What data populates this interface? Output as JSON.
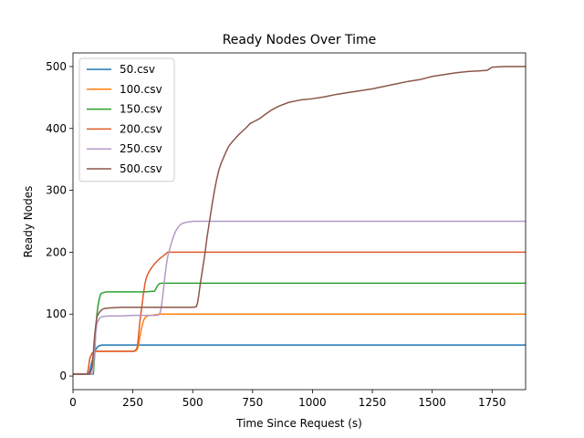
{
  "chart_data": {
    "type": "line",
    "title": "Ready Nodes Over Time",
    "xlabel": "Time Since Request (s)",
    "ylabel": "Ready Nodes",
    "xlim": [
      0,
      1890
    ],
    "ylim": [
      -22,
      522
    ],
    "xticks": [
      0,
      250,
      500,
      750,
      1000,
      1250,
      1500,
      1750
    ],
    "yticks": [
      0,
      100,
      200,
      300,
      400,
      500
    ],
    "grid": false,
    "legend_position": "top-left",
    "series": [
      {
        "name": "50.csv",
        "color": "#1f77b4",
        "x": [
          0,
          50,
          65,
          70,
          75,
          80,
          85,
          90,
          95,
          100,
          105,
          110,
          120,
          130,
          1890
        ],
        "y": [
          3,
          3,
          3,
          8,
          16,
          24,
          32,
          38,
          43,
          46,
          48,
          49,
          50,
          50,
          50
        ]
      },
      {
        "name": "100.csv",
        "color": "#ff7f0e",
        "x": [
          0,
          60,
          65,
          70,
          80,
          90,
          100,
          110,
          200,
          255,
          262,
          268,
          272,
          276,
          280,
          285,
          290,
          295,
          300,
          310,
          320,
          330,
          340,
          350,
          360,
          380,
          400,
          1890
        ],
        "y": [
          3,
          3,
          14,
          28,
          37,
          39,
          40,
          40,
          40,
          40,
          41,
          43,
          47,
          55,
          65,
          75,
          83,
          90,
          94,
          97,
          98,
          98,
          99,
          99,
          100,
          100,
          100,
          100
        ]
      },
      {
        "name": "150.csv",
        "color": "#2ca02c",
        "x": [
          0,
          85,
          90,
          95,
          100,
          105,
          110,
          115,
          120,
          130,
          140,
          150,
          300,
          340,
          345,
          350,
          355,
          360,
          370,
          380,
          390,
          400,
          1890
        ],
        "y": [
          3,
          3,
          30,
          75,
          100,
          115,
          125,
          132,
          134,
          135,
          136,
          136,
          136,
          137,
          140,
          144,
          147,
          149,
          150,
          150,
          150,
          150,
          150
        ]
      },
      {
        "name": "200.csv",
        "color": "#e05a2b",
        "x": [
          0,
          60,
          65,
          70,
          80,
          90,
          100,
          200,
          255,
          262,
          268,
          272,
          276,
          280,
          285,
          290,
          295,
          300,
          305,
          310,
          320,
          330,
          340,
          350,
          360,
          370,
          380,
          390,
          395,
          400,
          1890
        ],
        "y": [
          3,
          3,
          14,
          28,
          37,
          39,
          40,
          40,
          40,
          42,
          46,
          58,
          75,
          90,
          105,
          120,
          135,
          148,
          157,
          163,
          170,
          176,
          181,
          185,
          189,
          192,
          195,
          198,
          200,
          200,
          200
        ]
      },
      {
        "name": "250.csv",
        "color": "#b39ac7",
        "x": [
          0,
          80,
          85,
          90,
          95,
          100,
          110,
          120,
          150,
          200,
          250,
          300,
          350,
          360,
          365,
          370,
          375,
          380,
          385,
          390,
          395,
          400,
          410,
          420,
          430,
          440,
          450,
          460,
          470,
          480,
          490,
          500,
          1890
        ],
        "y": [
          3,
          3,
          12,
          40,
          70,
          85,
          93,
          96,
          97,
          97,
          98,
          98,
          98,
          99,
          104,
          115,
          130,
          148,
          165,
          180,
          192,
          200,
          214,
          226,
          235,
          241,
          245,
          247,
          248,
          249,
          249,
          250,
          250
        ]
      },
      {
        "name": "500.csv",
        "color": "#8c564b",
        "x": [
          0,
          70,
          80,
          85,
          90,
          95,
          100,
          110,
          120,
          130,
          150,
          200,
          300,
          400,
          500,
          515,
          520,
          525,
          530,
          540,
          550,
          560,
          570,
          580,
          590,
          600,
          610,
          620,
          630,
          640,
          650,
          660,
          680,
          700,
          720,
          740,
          760,
          780,
          800,
          830,
          860,
          900,
          950,
          1000,
          1050,
          1100,
          1150,
          1200,
          1250,
          1300,
          1350,
          1400,
          1450,
          1500,
          1550,
          1600,
          1650,
          1700,
          1730,
          1750,
          1800,
          1890
        ],
        "y": [
          3,
          3,
          14,
          38,
          64,
          82,
          96,
          103,
          107,
          109,
          110,
          111,
          111,
          111,
          111,
          112,
          118,
          130,
          145,
          170,
          195,
          225,
          250,
          275,
          298,
          318,
          334,
          345,
          354,
          363,
          371,
          376,
          385,
          393,
          400,
          408,
          412,
          416,
          422,
          430,
          436,
          442,
          446,
          448,
          451,
          455,
          458,
          461,
          464,
          468,
          472,
          476,
          479,
          484,
          487,
          490,
          492,
          493,
          494,
          499,
          500,
          500
        ]
      }
    ]
  }
}
